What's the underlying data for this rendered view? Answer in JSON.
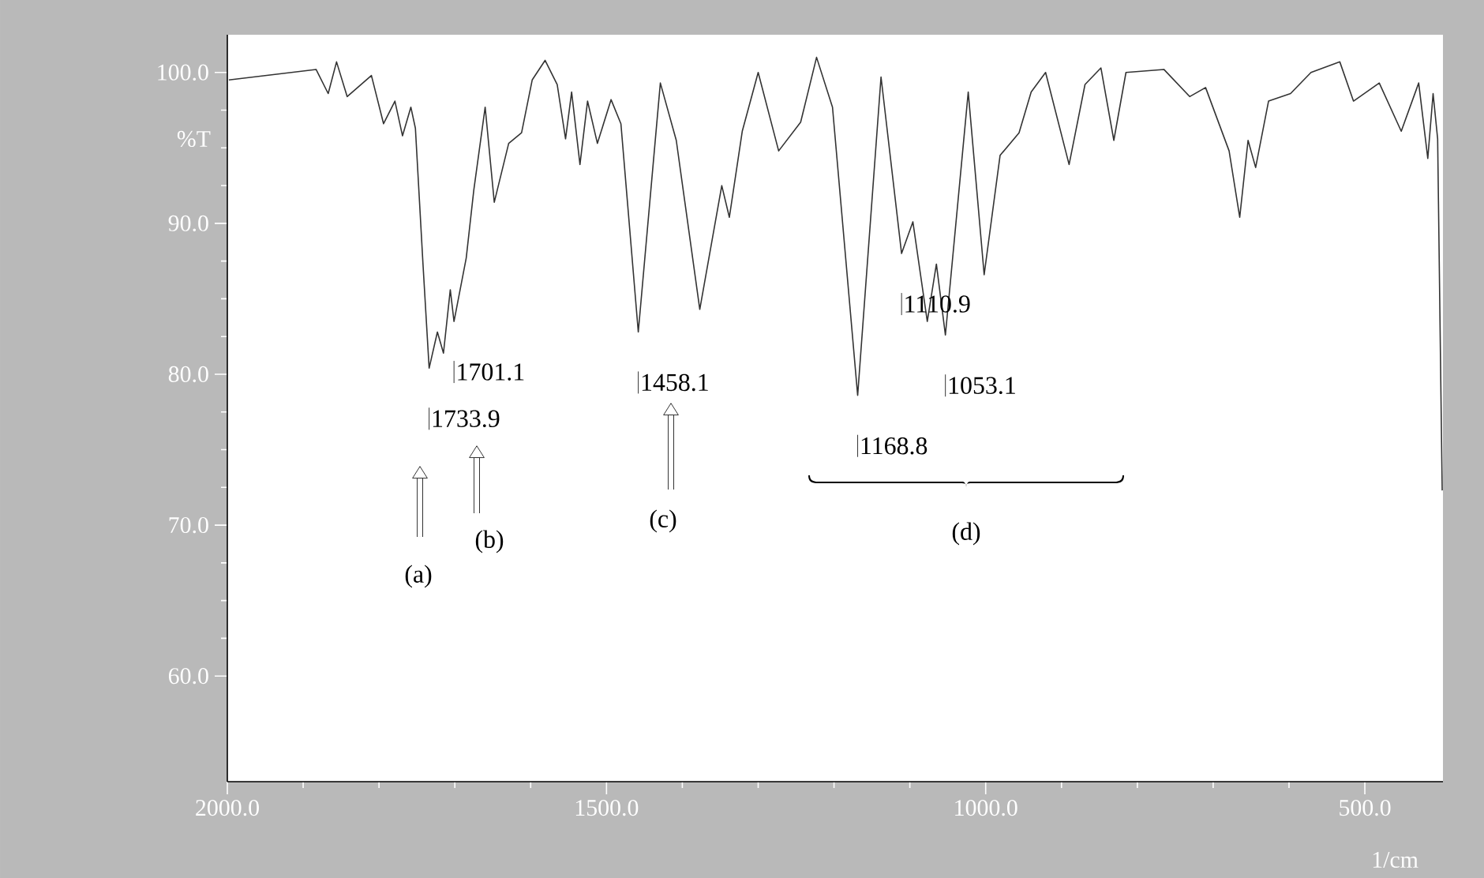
{
  "chart_data": {
    "type": "line",
    "xlabel": "1/cm",
    "ylabel": "%T",
    "xlim": [
      2000,
      397
    ],
    "ylim": [
      53,
      102.5
    ],
    "xticks": [
      {
        "value": 2000,
        "label": "2000.0"
      },
      {
        "value": 1500,
        "label": "1500.0"
      },
      {
        "value": 1000,
        "label": "1000.0"
      },
      {
        "value": 500,
        "label": "500.0"
      }
    ],
    "yticks": [
      {
        "value": 60,
        "label": "60.0"
      },
      {
        "value": 70,
        "label": "70.0"
      },
      {
        "value": 80,
        "label": "80.0"
      },
      {
        "value": 90,
        "label": "90.0"
      },
      {
        "value": 100,
        "label": "100.0"
      }
    ],
    "series": [
      {
        "color": "#333333",
        "x": [
          1998,
          1883,
          1867,
          1856,
          1842,
          1810,
          1794,
          1779,
          1769,
          1758,
          1752,
          1742,
          1733.9,
          1723,
          1715,
          1706,
          1701.1,
          1685,
          1675,
          1660,
          1648,
          1629,
          1612,
          1598,
          1581,
          1565,
          1554,
          1546,
          1535,
          1525,
          1512,
          1494,
          1481,
          1458.1,
          1429,
          1408,
          1377,
          1348,
          1338,
          1321,
          1300,
          1273,
          1244,
          1223,
          1202,
          1168.8,
          1138,
          1110.9,
          1096,
          1077,
          1065,
          1053.1,
          1023,
          1002,
          981,
          956,
          940,
          921,
          890,
          869,
          848,
          831,
          815,
          765,
          731,
          710,
          679,
          665,
          654,
          644,
          627,
          598,
          571,
          533,
          515,
          481,
          452,
          429,
          417,
          410,
          404,
          398
        ],
        "values": [
          99.5,
          100.2,
          98.6,
          100.7,
          98.4,
          99.8,
          96.6,
          98.1,
          95.8,
          97.7,
          96.3,
          87.3,
          80.4,
          82.8,
          81.4,
          85.6,
          83.5,
          87.7,
          92.2,
          97.7,
          91.4,
          95.3,
          96.0,
          99.5,
          100.8,
          99.2,
          95.6,
          98.7,
          93.9,
          98.1,
          95.3,
          98.2,
          96.6,
          82.8,
          99.3,
          95.5,
          84.3,
          92.5,
          90.4,
          96.1,
          100.0,
          94.8,
          96.7,
          101.0,
          97.7,
          78.6,
          99.7,
          88.0,
          90.1,
          83.5,
          87.3,
          82.6,
          98.7,
          86.6,
          94.5,
          96.0,
          98.7,
          100.0,
          93.9,
          99.2,
          100.3,
          95.5,
          100.0,
          100.2,
          98.4,
          99.0,
          94.8,
          90.4,
          95.5,
          93.7,
          98.1,
          98.6,
          100.0,
          100.7,
          98.1,
          99.3,
          96.1,
          99.3,
          94.3,
          98.6,
          95.6,
          72.3
        ]
      }
    ],
    "annotations": [
      {
        "text": "1733.9",
        "x": 1733.9,
        "y": 80.4
      },
      {
        "text": "1701.1",
        "x": 1701.1,
        "y": 83.5
      },
      {
        "text": "1458.1",
        "x": 1458.1,
        "y": 82.8
      },
      {
        "text": "1168.8",
        "x": 1168.8,
        "y": 78.6
      },
      {
        "text": "1110.9",
        "x": 1110.9,
        "y": 88.0
      },
      {
        "text": "1053.1",
        "x": 1053.1,
        "y": 82.6
      },
      "(a)",
      "(b)",
      "(c)",
      "(d)"
    ]
  }
}
